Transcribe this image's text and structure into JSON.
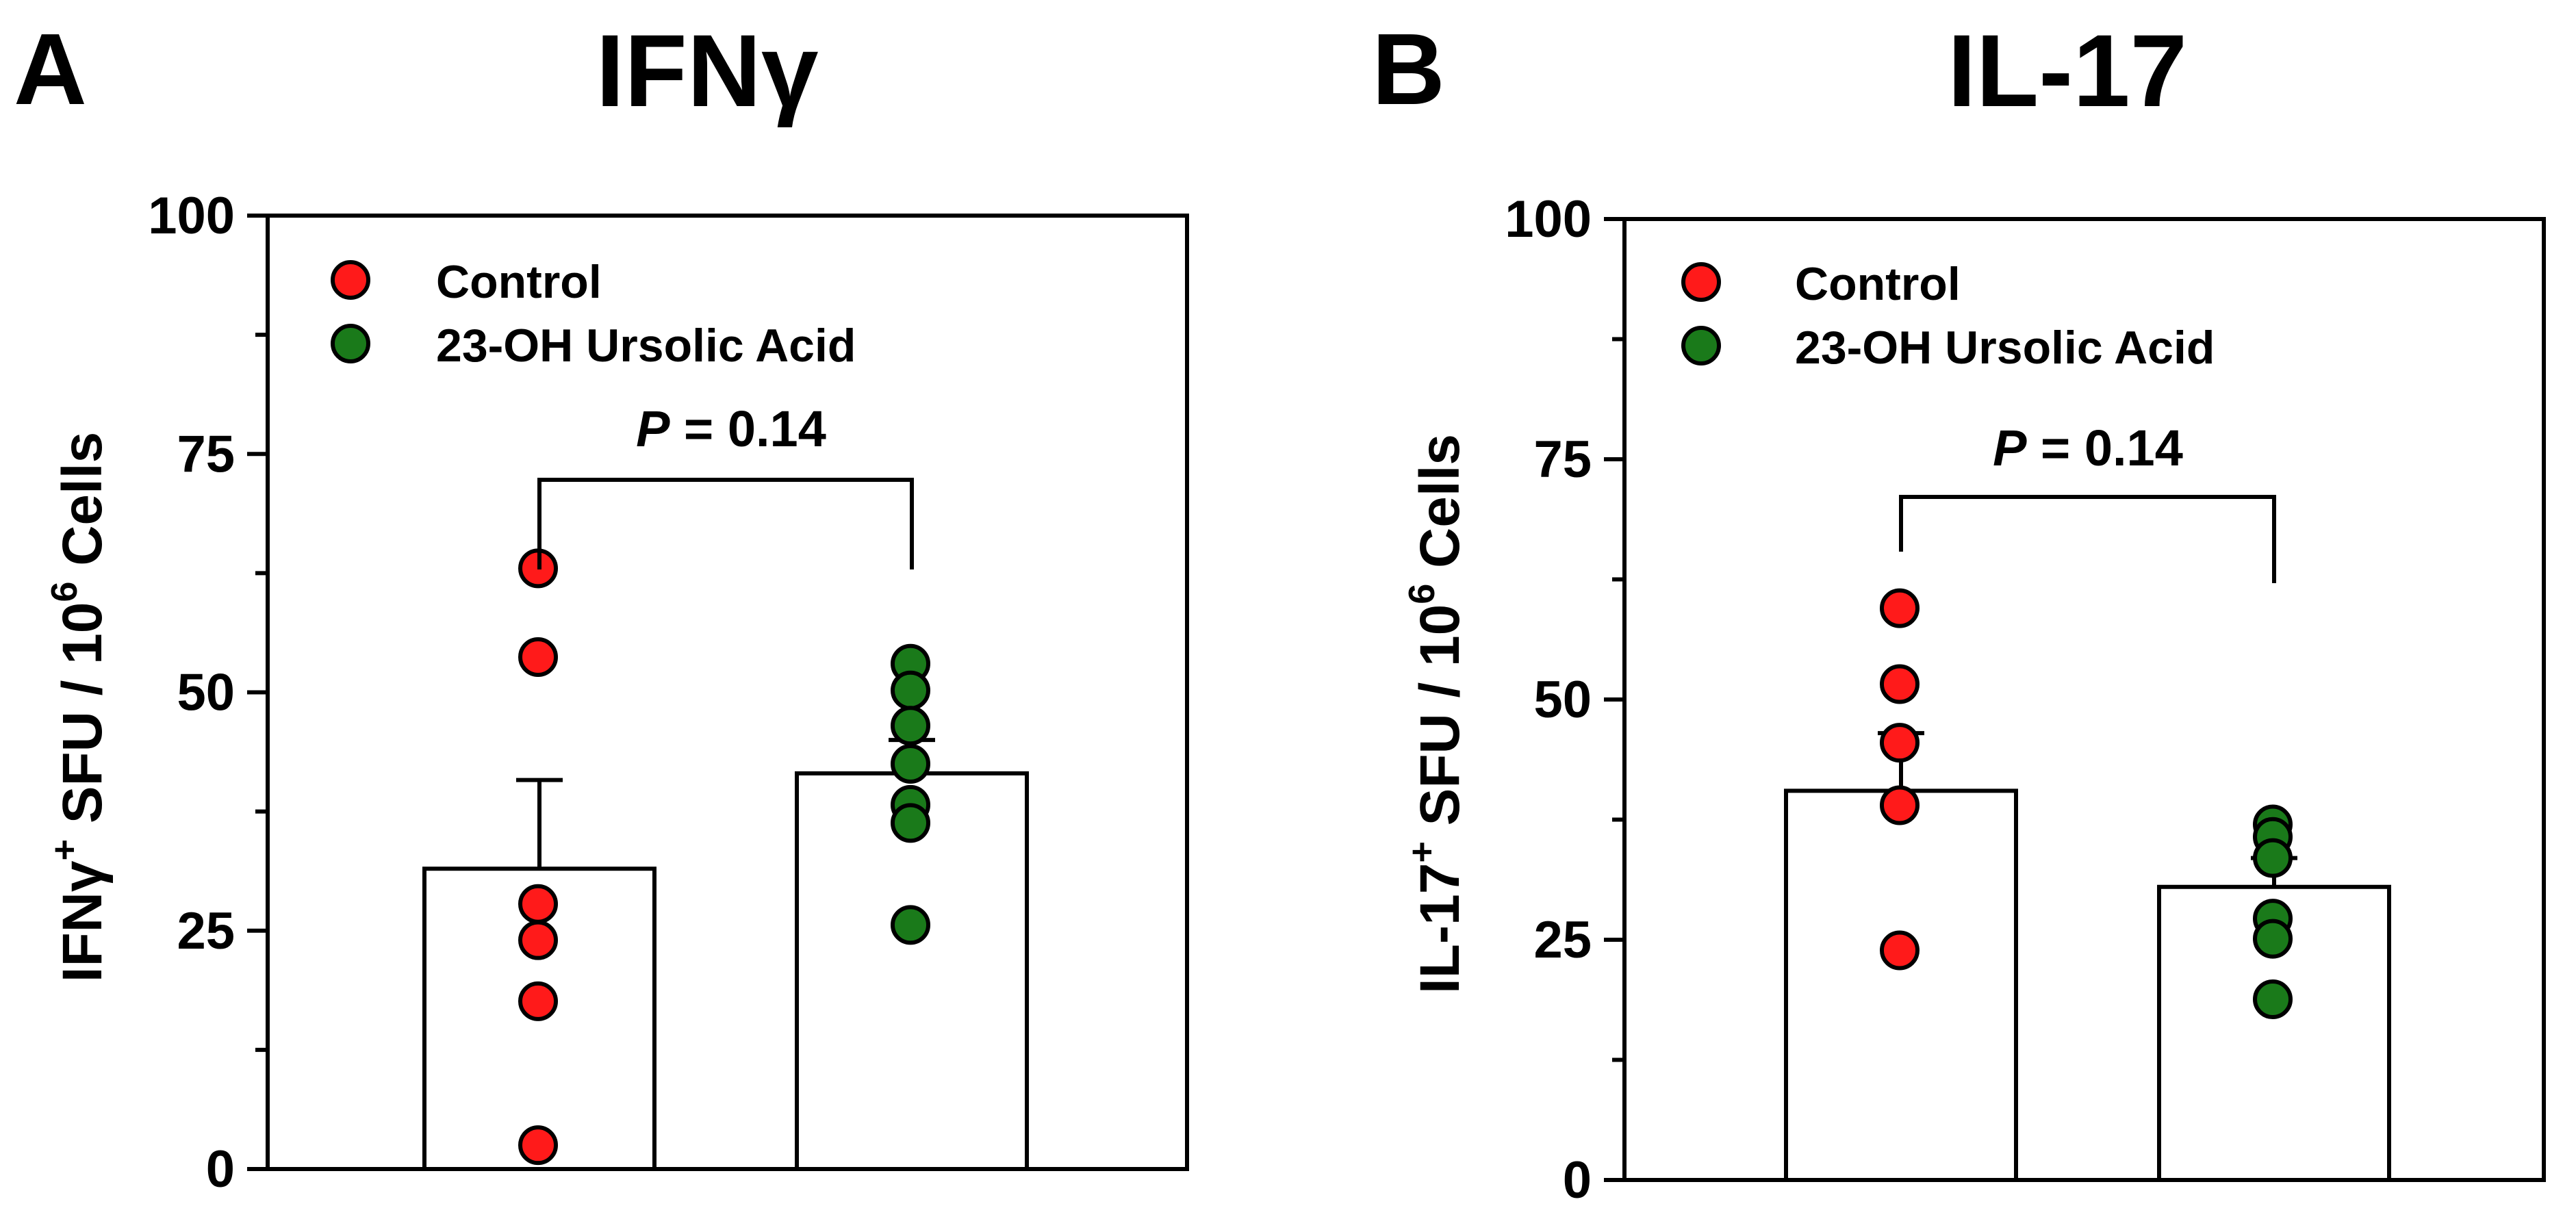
{
  "panels": [
    {
      "letter": "A",
      "title": "IFNγ",
      "ylabel_prefix": "IFNγ",
      "ylabel_sup": "+",
      "ylabel_mid": " SFU / 10",
      "ylabel_sup2": "6",
      "ylabel_suffix": " Cells",
      "legend": [
        "Control",
        "23-OH Ursolic Acid"
      ],
      "annotation": {
        "p_italic": "P",
        "p_rest": " = 0.14"
      }
    },
    {
      "letter": "B",
      "title": "IL-17",
      "ylabel_prefix": "IL-17",
      "ylabel_sup": "+",
      "ylabel_mid": " SFU / 10",
      "ylabel_sup2": "6",
      "ylabel_suffix": " Cells",
      "legend": [
        "Control",
        "23-OH Ursolic Acid"
      ],
      "annotation": {
        "p_italic": "P",
        "p_rest": " = 0.14"
      }
    }
  ],
  "chart_data": [
    {
      "type": "bar",
      "title": "IFNγ",
      "ylabel": "IFNγ+ SFU / 10^6 Cells",
      "ylim": [
        0,
        100
      ],
      "yticks": [
        "0",
        "25",
        "50",
        "75",
        "100"
      ],
      "categories": [
        "Control",
        "23-OH Ursolic Acid"
      ],
      "colors": [
        "#ff1a1a",
        "#1a7a1a"
      ],
      "values": [
        31.5,
        41.5
      ],
      "error_upper": [
        40.8,
        45
      ],
      "points": [
        [
          63,
          53.7,
          27.8,
          24,
          17.6,
          2.5
        ],
        [
          53,
          50.2,
          46.5,
          42.5,
          38.2,
          36.3,
          25.6
        ]
      ],
      "p_value": "P = 0.14"
    },
    {
      "type": "bar",
      "title": "IL-17",
      "ylabel": "IL-17+ SFU / 10^6 Cells",
      "ylim": [
        0,
        100
      ],
      "yticks": [
        "0",
        "25",
        "50",
        "75",
        "100"
      ],
      "categories": [
        "Control",
        "23-OH Ursolic Acid"
      ],
      "colors": [
        "#ff1a1a",
        "#1a7a1a"
      ],
      "values": [
        40.5,
        30.5
      ],
      "error_upper": [
        46.5,
        33.5
      ],
      "points": [
        [
          59.5,
          51.6,
          45.5,
          39,
          23.9
        ],
        [
          37,
          35.7,
          33.5,
          27.2,
          25.1,
          18.8
        ]
      ],
      "p_value": "P = 0.14"
    }
  ]
}
